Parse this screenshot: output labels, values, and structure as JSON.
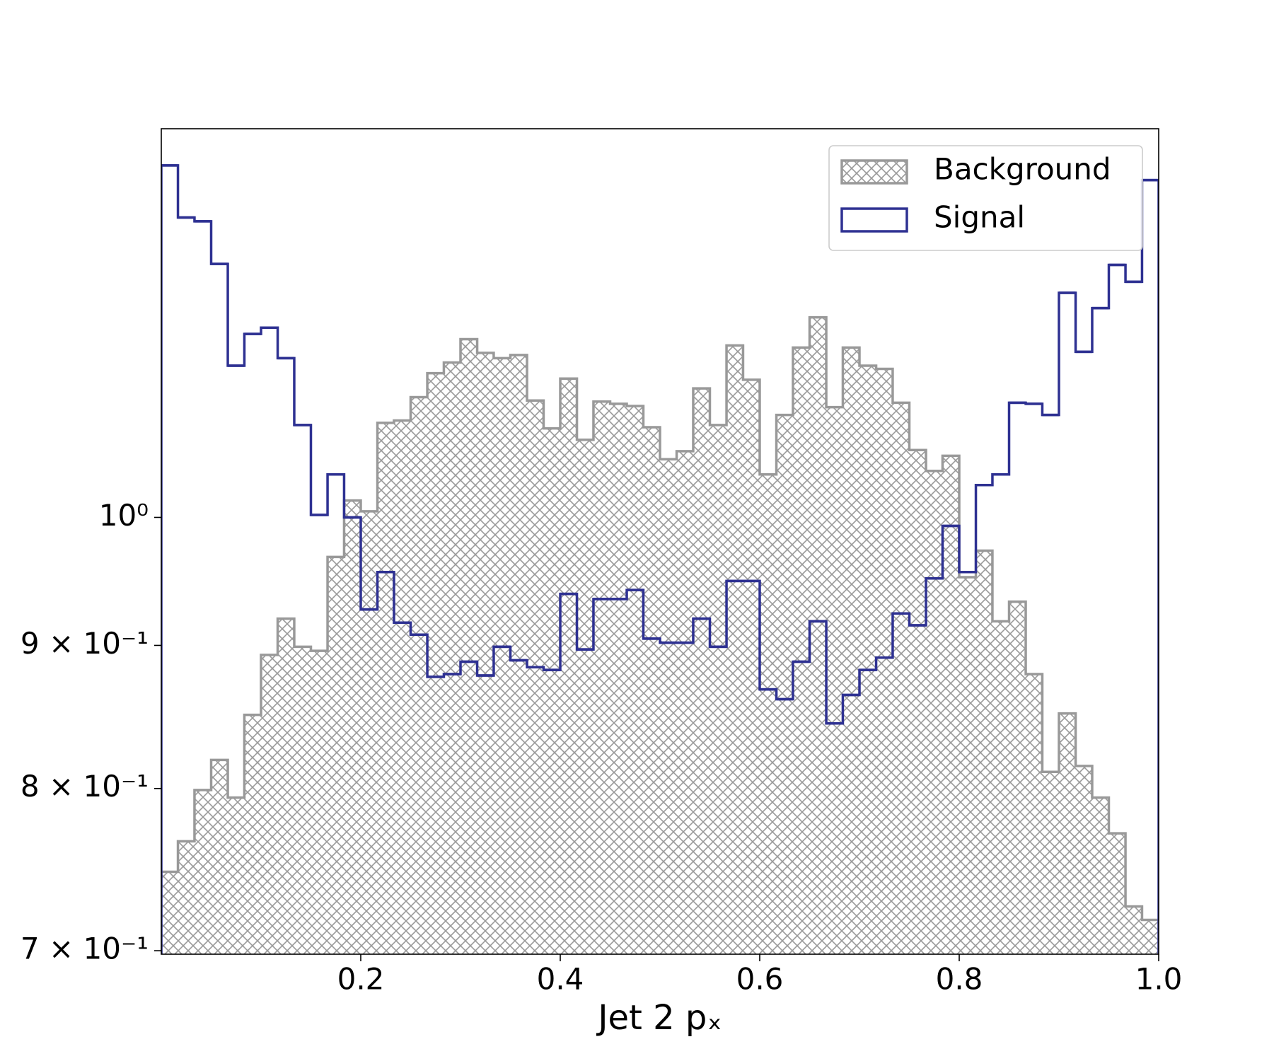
{
  "chart_data": {
    "type": "histogram",
    "xlabel": "Jet 2 pₓ",
    "log_y": true,
    "legend": "upper right",
    "bins": [
      0,
      0.0167,
      0.0333,
      0.05,
      0.0667,
      0.0833,
      0.1,
      0.1167,
      0.1333,
      0.15,
      0.1667,
      0.1833,
      0.2,
      0.2167,
      0.2333,
      0.25,
      0.2667,
      0.2833,
      0.3,
      0.3167,
      0.3333,
      0.35,
      0.3667,
      0.3833,
      0.4,
      0.4167,
      0.4333,
      0.45,
      0.4667,
      0.4833,
      0.5,
      0.5167,
      0.5333,
      0.55,
      0.5667,
      0.5833,
      0.6,
      0.6167,
      0.6333,
      0.65,
      0.6667,
      0.6833,
      0.7,
      0.7167,
      0.7333,
      0.75,
      0.7667,
      0.7833,
      0.8,
      0.8167,
      0.8333,
      0.85,
      0.8667,
      0.8833,
      0.9,
      0.9167,
      0.9333,
      0.95,
      0.9667,
      0.9833,
      1
    ],
    "series": [
      {
        "name": "Background",
        "color": "#999999",
        "hatch": true,
        "values": [
          0.747,
          0.766,
          0.799,
          0.819,
          0.794,
          0.85,
          0.893,
          0.92,
          0.899,
          0.896,
          0.968,
          1.014,
          1.005,
          1.081,
          1.083,
          1.104,
          1.126,
          1.136,
          1.158,
          1.145,
          1.14,
          1.143,
          1.101,
          1.076,
          1.121,
          1.066,
          1.1,
          1.098,
          1.096,
          1.077,
          1.049,
          1.056,
          1.112,
          1.079,
          1.152,
          1.12,
          1.036,
          1.088,
          1.15,
          1.179,
          1.095,
          1.15,
          1.133,
          1.13,
          1.099,
          1.057,
          1.039,
          1.052,
          0.952,
          0.973,
          0.918,
          0.933,
          0.879,
          0.811,
          0.851,
          0.815,
          0.794,
          0.771,
          0.726,
          0.718
        ]
      },
      {
        "name": "Signal",
        "color": "#2e3192",
        "hatch": false,
        "values": [
          1.336,
          1.28,
          1.276,
          1.232,
          1.133,
          1.163,
          1.169,
          1.14,
          1.079,
          1.002,
          1.036,
          1.0,
          0.927,
          0.956,
          0.917,
          0.908,
          0.877,
          0.879,
          0.888,
          0.878,
          0.899,
          0.889,
          0.884,
          0.882,
          0.939,
          0.897,
          0.935,
          0.935,
          0.942,
          0.905,
          0.902,
          0.902,
          0.92,
          0.899,
          0.949,
          0.949,
          0.868,
          0.861,
          0.888,
          0.918,
          0.844,
          0.864,
          0.882,
          0.891,
          0.924,
          0.915,
          0.951,
          0.993,
          0.956,
          1.027,
          1.036,
          1.099,
          1.098,
          1.088,
          1.203,
          1.146,
          1.188,
          1.231,
          1.214,
          1.32
        ]
      }
    ],
    "xlim": [
      0,
      1
    ],
    "xticks": [
      0.2,
      0.4,
      0.6,
      0.8,
      {
        "value": 1,
        "label": "1.0"
      }
    ],
    "ylim": [
      0.698,
      1.377
    ],
    "yticks": [
      {
        "value": 0.7,
        "label": "7 × 10⁻¹"
      },
      {
        "value": 0.8,
        "label": "8 × 10⁻¹"
      },
      {
        "value": 0.9,
        "label": "9 × 10⁻¹"
      },
      {
        "value": 1,
        "label": "10⁰"
      }
    ]
  }
}
